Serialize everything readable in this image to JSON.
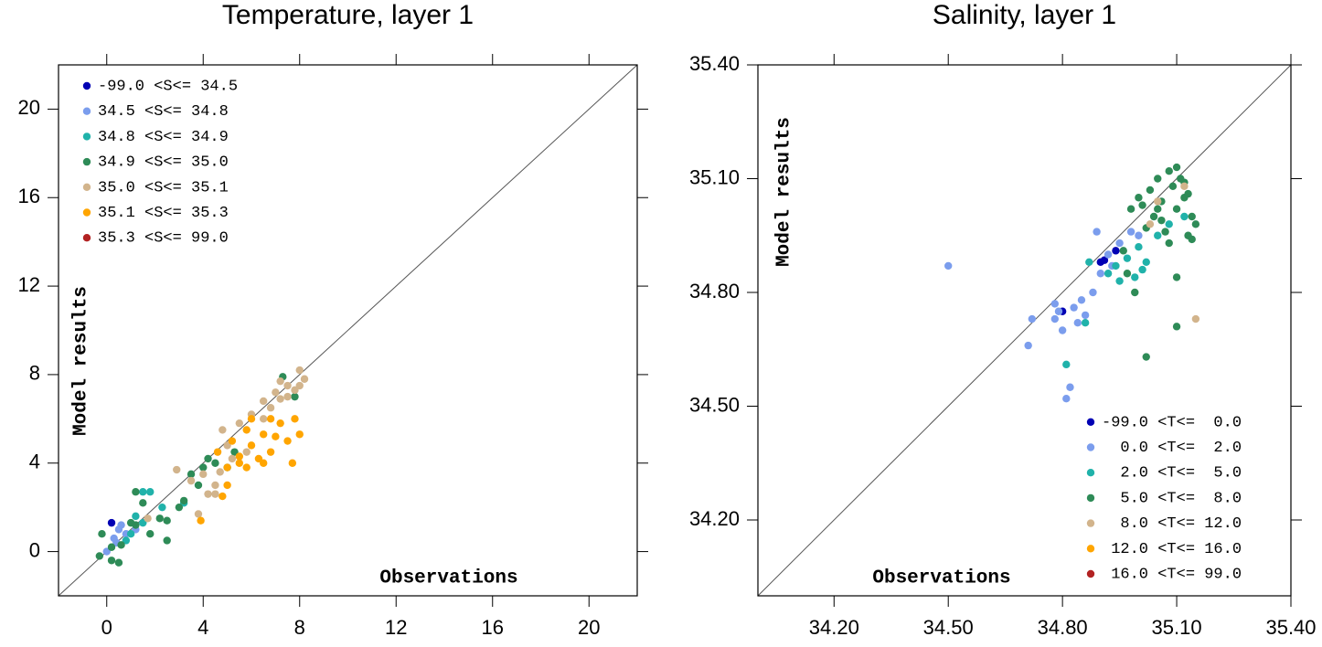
{
  "chart_data": [
    {
      "type": "scatter",
      "title": "Temperature, layer 1",
      "xlabel": "Observations",
      "ylabel": "Model results",
      "xlim": [
        -2,
        22
      ],
      "ylim": [
        -2,
        22
      ],
      "xticks": [
        0,
        4,
        8,
        12,
        16,
        20
      ],
      "yticks": [
        0,
        4,
        8,
        12,
        16,
        20
      ],
      "legend": "upper left",
      "series": [
        {
          "name": "-99.0 <S<= 34.5",
          "color": "#0000b4",
          "x": [
            0.2
          ],
          "y": [
            1.3
          ]
        },
        {
          "name": "34.5 <S<= 34.8",
          "color": "#7b9ded",
          "x": [
            0.5,
            0.6,
            0.3,
            0,
            0.8,
            1.2,
            0.4
          ],
          "y": [
            1.0,
            1.2,
            0.6,
            0,
            0.8,
            1.0,
            0.4
          ]
        },
        {
          "name": "34.8 <S<= 34.9",
          "color": "#20b2aa",
          "x": [
            1.5,
            1.8,
            1.2,
            2.3,
            1.0,
            3.2,
            0.8,
            1.5
          ],
          "y": [
            2.7,
            2.7,
            1.6,
            2.0,
            0.8,
            2.2,
            0.5,
            1.3
          ]
        },
        {
          "name": "34.9 <S<= 35.0",
          "color": "#2e8b57",
          "x": [
            -0.2,
            1.2,
            1.5,
            0.5,
            0.2,
            -0.3,
            2.5,
            1.8,
            2.2,
            2.5,
            3.5,
            4,
            3.8,
            4.5,
            5.0,
            7.3,
            7.8,
            3.0,
            1.0,
            0.6,
            3.2,
            0.2,
            1.2,
            4.2,
            5.3
          ],
          "y": [
            0.8,
            2.7,
            2.2,
            -0.5,
            -0.4,
            -0.2,
            0.5,
            0.8,
            1.5,
            1.4,
            3.5,
            3.8,
            3.0,
            4.0,
            3.8,
            7.9,
            7.0,
            2.0,
            1.3,
            0.3,
            2.3,
            0.2,
            1.2,
            4.2,
            4.5
          ]
        },
        {
          "name": "35.0 <S<= 35.1",
          "color": "#d2b48c",
          "x": [
            2.9,
            3.5,
            4.0,
            4.2,
            4.5,
            4.8,
            5.5,
            6.0,
            6.5,
            7.0,
            7.5,
            8.0,
            8.2,
            7.8,
            7.2,
            6.8,
            5.8,
            4.5,
            3.8,
            5.0,
            7.5,
            8.0,
            7.2,
            6.5,
            5.2,
            4.7,
            1.7
          ],
          "y": [
            3.7,
            3.2,
            3.5,
            2.6,
            2.6,
            5.5,
            5.8,
            6.2,
            6.8,
            7.2,
            7.5,
            8.2,
            7.8,
            7.3,
            6.9,
            6.5,
            4.5,
            3.0,
            1.7,
            4.8,
            7.0,
            7.5,
            7.7,
            6.0,
            4.2,
            3.6,
            1.5
          ]
        },
        {
          "name": "35.1 <S<= 35.3",
          "color": "#ffa500",
          "x": [
            3.9,
            4.8,
            5.0,
            5.5,
            5.8,
            6.0,
            6.5,
            6.8,
            7.0,
            7.5,
            8.0,
            7.8,
            6.3,
            5.5,
            5.0,
            4.6,
            6.8,
            7.2,
            6.0,
            5.2,
            7.7,
            6.5,
            5.8
          ],
          "y": [
            1.4,
            2.5,
            3.8,
            4.3,
            5.5,
            4.8,
            5.3,
            6.0,
            5.2,
            5.0,
            5.3,
            6.0,
            4.2,
            4.0,
            3.0,
            4.5,
            4.5,
            5.8,
            6.0,
            5.0,
            4.0,
            4.0,
            3.8
          ]
        },
        {
          "name": "35.3 <S<= 99.0",
          "color": "#b22222",
          "x": [],
          "y": []
        }
      ]
    },
    {
      "type": "scatter",
      "title": "Salinity, layer 1",
      "xlabel": "Observations",
      "ylabel": "Model results",
      "xlim": [
        34.0,
        35.4
      ],
      "ylim": [
        34.0,
        35.4
      ],
      "xticks": [
        {
          "value": 34.2,
          "label": "34.20"
        },
        {
          "value": 34.5,
          "label": "34.50"
        },
        {
          "value": 34.8,
          "label": "34.80"
        },
        {
          "value": 35.1,
          "label": "35.10"
        },
        {
          "value": 35.4,
          "label": "35.40"
        }
      ],
      "yticks": [
        {
          "value": 34.2,
          "label": "34.20"
        },
        {
          "value": 34.5,
          "label": "34.50"
        },
        {
          "value": 34.8,
          "label": "34.80"
        },
        {
          "value": 35.1,
          "label": "35.10"
        },
        {
          "value": 35.4,
          "label": "35.40"
        }
      ],
      "legend": "lower right",
      "series": [
        {
          "name": "-99.0 <T<=  0.0",
          "color": "#0000b4",
          "x": [
            34.94,
            34.9,
            34.91,
            34.8
          ],
          "y": [
            34.91,
            34.88,
            34.885,
            34.75
          ]
        },
        {
          "name": "  0.0 <T<=  2.0",
          "color": "#7b9ded",
          "x": [
            34.5,
            34.72,
            34.71,
            34.78,
            34.8,
            34.81,
            34.82,
            34.79,
            34.83,
            34.85,
            34.88,
            34.9,
            34.92,
            34.95,
            34.98,
            34.89,
            34.78,
            34.86,
            34.93,
            35.0,
            34.84
          ],
          "y": [
            34.87,
            34.73,
            34.66,
            34.77,
            34.7,
            34.52,
            34.55,
            34.75,
            34.76,
            34.78,
            34.8,
            34.85,
            34.9,
            34.93,
            34.96,
            34.96,
            34.73,
            34.74,
            34.87,
            34.95,
            34.72
          ]
        },
        {
          "name": "  2.0 <T<=  5.0",
          "color": "#20b2aa",
          "x": [
            34.81,
            34.86,
            34.87,
            34.92,
            34.95,
            34.97,
            35.0,
            35.02,
            35.05,
            35.08,
            35.12,
            34.99,
            34.94,
            35.01
          ],
          "y": [
            34.61,
            34.72,
            34.88,
            34.85,
            34.83,
            34.89,
            34.92,
            34.88,
            34.95,
            34.98,
            35.0,
            34.84,
            34.87,
            34.86
          ]
        },
        {
          "name": "  5.0 <T<=  8.0",
          "color": "#2e8b57",
          "x": [
            35.02,
            35.1,
            35.1,
            34.99,
            35.05,
            35.08,
            35.1,
            35.12,
            35.14,
            35.15,
            35.13,
            35.06,
            35.04,
            35.02,
            35.0,
            34.98,
            35.07,
            35.09,
            35.11,
            35.03,
            35.06,
            35.12,
            35.14,
            35.08,
            34.96,
            35.01,
            35.05,
            35.1,
            35.13,
            34.97
          ],
          "y": [
            34.63,
            34.71,
            34.84,
            34.8,
            35.1,
            35.12,
            35.13,
            35.05,
            35.0,
            34.98,
            34.95,
            35.04,
            35.0,
            34.97,
            35.05,
            35.02,
            34.96,
            35.08,
            35.1,
            35.07,
            34.99,
            35.09,
            34.94,
            34.93,
            34.91,
            35.03,
            35.02,
            35.02,
            35.06,
            34.85
          ]
        },
        {
          "name": "  8.0 <T<= 12.0",
          "color": "#d2b48c",
          "x": [
            35.15,
            35.12,
            35.05,
            35.03
          ],
          "y": [
            34.73,
            35.08,
            35.04,
            34.98
          ]
        },
        {
          "name": " 12.0 <T<= 16.0",
          "color": "#ffa500",
          "x": [],
          "y": []
        },
        {
          "name": " 16.0 <T<= 99.0",
          "color": "#b22222",
          "x": [],
          "y": []
        }
      ]
    }
  ]
}
